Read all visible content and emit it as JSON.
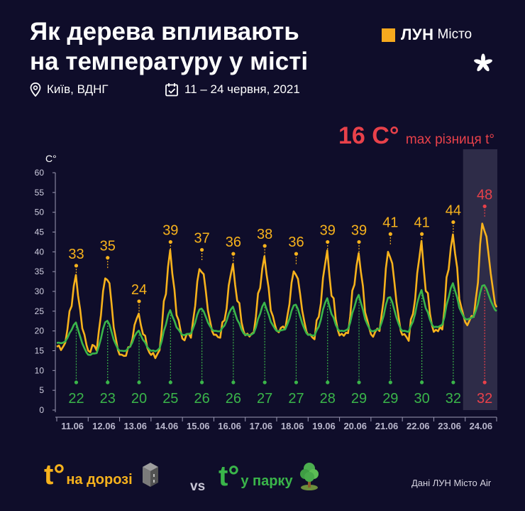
{
  "header": {
    "title_line1": "Як дерева впливають",
    "title_line2": "на температуру у місті",
    "location": "Київ, ВДНГ",
    "dates": "11 – 24 червня, 2021"
  },
  "brand": {
    "name": "ЛУН",
    "sub": "Місто"
  },
  "chart_data": {
    "type": "line",
    "title": "",
    "ylabel": "C°",
    "ylim": [
      0,
      60
    ],
    "yticks": [
      0,
      5,
      10,
      15,
      20,
      25,
      30,
      35,
      40,
      45,
      50,
      55,
      60
    ],
    "categories": [
      "11.06",
      "12.06",
      "13.06",
      "14.06",
      "15.06",
      "16.06",
      "17.06",
      "18.06",
      "19.06",
      "20.06",
      "21.06",
      "22.06",
      "23.06",
      "24.06"
    ],
    "highlight_category": "24.06",
    "headline": {
      "value": "16 C°",
      "text": "max різниця t°"
    },
    "series": [
      {
        "name": "t° на дорозі",
        "color": "#f7b21c",
        "daily_min": [
          16,
          15,
          14,
          14,
          18,
          19,
          19,
          20,
          19,
          19,
          19,
          19,
          20,
          22
        ],
        "daily_max": [
          33,
          35,
          24,
          39,
          37,
          36,
          38,
          36,
          39,
          39,
          41,
          41,
          44,
          48
        ]
      },
      {
        "name": "t° у парку",
        "color": "#3ab54a",
        "daily_min": [
          17,
          14,
          15,
          15,
          19,
          20,
          19,
          20,
          19,
          20,
          20,
          20,
          21,
          23
        ],
        "daily_max": [
          22,
          23,
          20,
          25,
          26,
          26,
          27,
          27,
          28,
          29,
          29,
          30,
          32,
          32
        ]
      }
    ],
    "end_values": {
      "road": 26,
      "park": 25
    }
  },
  "legend": {
    "road_t": "t°",
    "road_label": "на дорозі",
    "vs": "vs",
    "park_t": "t°",
    "park_label": "у парку"
  },
  "source": "Дані ЛУН Місто Air",
  "colors": {
    "road": "#f7b21c",
    "park": "#3ab54a",
    "diff": "#e8414a",
    "background": "#0f0d2a",
    "axis": "#9c9ab4"
  }
}
